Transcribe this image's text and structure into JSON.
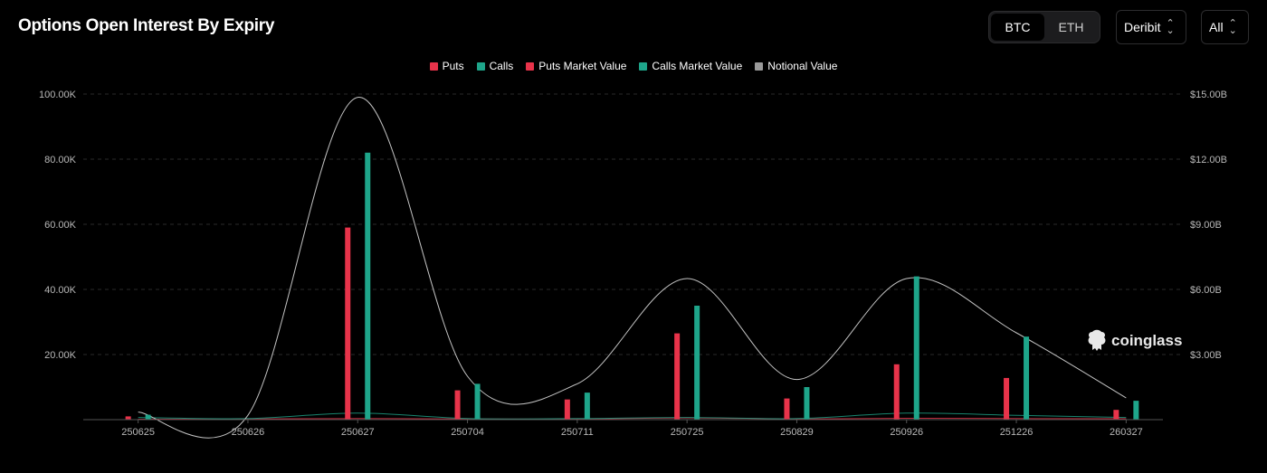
{
  "header": {
    "title": "Options Open Interest By Expiry",
    "asset_options": [
      "BTC",
      "ETH"
    ],
    "asset_selected": "BTC",
    "exchange_value": "Deribit",
    "range_value": "All"
  },
  "watermark": "coinglass",
  "colors": {
    "puts": "#e8334a",
    "calls": "#1ea58a",
    "puts_mv": "#e8334a",
    "calls_mv": "#1ea58a",
    "notional": "#9a9a9a",
    "grid": "#2a2a2a",
    "axis_text": "#b8b8b8"
  },
  "chart_data": {
    "type": "bar",
    "title": "Options Open Interest By Expiry",
    "categories": [
      "250625",
      "250626",
      "250627",
      "250704",
      "250711",
      "250725",
      "250829",
      "250926",
      "251226",
      "260327"
    ],
    "series": [
      {
        "name": "Puts",
        "axis": "left",
        "kind": "bar",
        "values": [
          1000,
          0,
          59000,
          9000,
          6200,
          26500,
          6500,
          17000,
          12800,
          3000
        ]
      },
      {
        "name": "Calls",
        "axis": "left",
        "kind": "bar",
        "values": [
          1500,
          0,
          82000,
          11000,
          8300,
          35000,
          10000,
          44000,
          25500,
          5800
        ]
      },
      {
        "name": "Puts Market Value",
        "axis": "right",
        "kind": "line",
        "values": [
          0.02,
          0.03,
          0.05,
          0.03,
          0.03,
          0.08,
          0.03,
          0.06,
          0.05,
          0.04
        ]
      },
      {
        "name": "Calls Market Value",
        "axis": "right",
        "kind": "line",
        "values": [
          0.1,
          0.05,
          0.3,
          0.05,
          0.05,
          0.1,
          0.05,
          0.3,
          0.2,
          0.1
        ]
      },
      {
        "name": "Notional Value",
        "axis": "right",
        "kind": "line",
        "values": [
          0.35,
          0.2,
          14.85,
          2.0,
          1.65,
          6.5,
          1.85,
          6.5,
          4.0,
          1.0
        ]
      }
    ],
    "left_axis": {
      "ylim": [
        0,
        100000
      ],
      "ticks": [
        "100.00K",
        "80.00K",
        "60.00K",
        "40.00K",
        "20.00K"
      ],
      "tick_values": [
        100000,
        80000,
        60000,
        40000,
        20000
      ]
    },
    "right_axis": {
      "ylim": [
        0,
        15
      ],
      "unit": "B USD",
      "ticks": [
        "$15.00B",
        "$12.00B",
        "$9.00B",
        "$6.00B",
        "$3.00B"
      ],
      "tick_values": [
        15,
        12,
        9,
        6,
        3
      ]
    },
    "grid": true,
    "legend": "top-center"
  }
}
